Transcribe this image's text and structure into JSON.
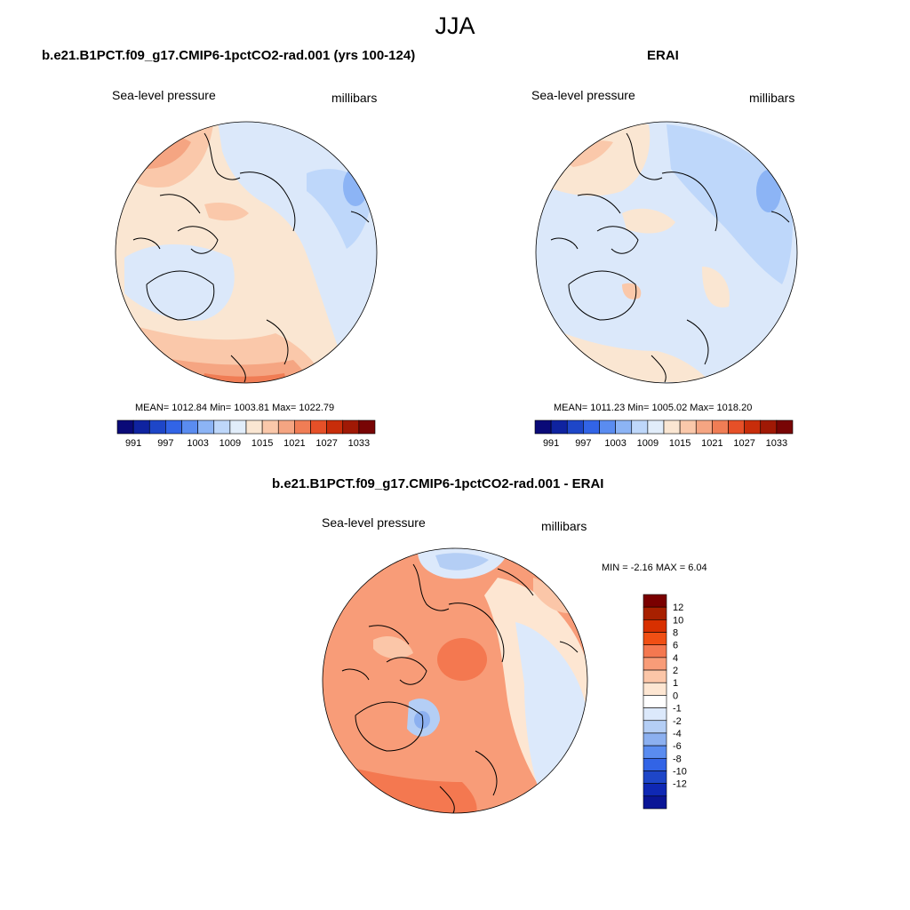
{
  "title": "JJA",
  "panels": [
    {
      "id": "model",
      "title": "b.e21.B1PCT.f09_g17.CMIP6-1pctCO2-rad.001 (yrs 100-124)",
      "left_label": "Sea-level pressure",
      "right_label": "millibars",
      "stats": "MEAN= 1012.84  Min= 1003.81  Max= 1022.79"
    },
    {
      "id": "obs",
      "title": "ERAI",
      "left_label": "Sea-level pressure",
      "right_label": "millibars",
      "stats": "MEAN= 1011.23  Min= 1005.02  Max= 1018.20"
    },
    {
      "id": "diff",
      "title": "b.e21.B1PCT.f09_g17.CMIP6-1pctCO2-rad.001 - ERAI",
      "left_label": "Sea-level pressure",
      "right_label": "millibars",
      "stats": "MIN =  -2.16 MAX =   6.04"
    }
  ],
  "colorbars": {
    "absolute": {
      "colors": [
        "#0a0a78",
        "#0f23a0",
        "#1e46c8",
        "#3264e6",
        "#5a8cf0",
        "#8cb4f5",
        "#bed7fa",
        "#e1edfa",
        "#fae6d2",
        "#fac8aa",
        "#f5a582",
        "#f07d55",
        "#e65028",
        "#c82d0a",
        "#a01905",
        "#780505"
      ],
      "labels": [
        "991",
        "997",
        "1003",
        "1009",
        "1015",
        "1021",
        "1027",
        "1033"
      ]
    },
    "difference": {
      "colors": [
        "#7a0000",
        "#a82000",
        "#d83000",
        "#f04f14",
        "#f47850",
        "#f89c78",
        "#fbc6a8",
        "#fde6d2",
        "#ffffff",
        "#dce9fb",
        "#b4cef5",
        "#8cb0f0",
        "#5a8cf0",
        "#3264e6",
        "#1e46c8",
        "#0f28b4",
        "#0a1596"
      ],
      "labels": [
        "12",
        "10",
        "8",
        "6",
        "4",
        "2",
        "1",
        "0",
        "-1",
        "-2",
        "-4",
        "-6",
        "-8",
        "-10",
        "-12"
      ]
    }
  }
}
